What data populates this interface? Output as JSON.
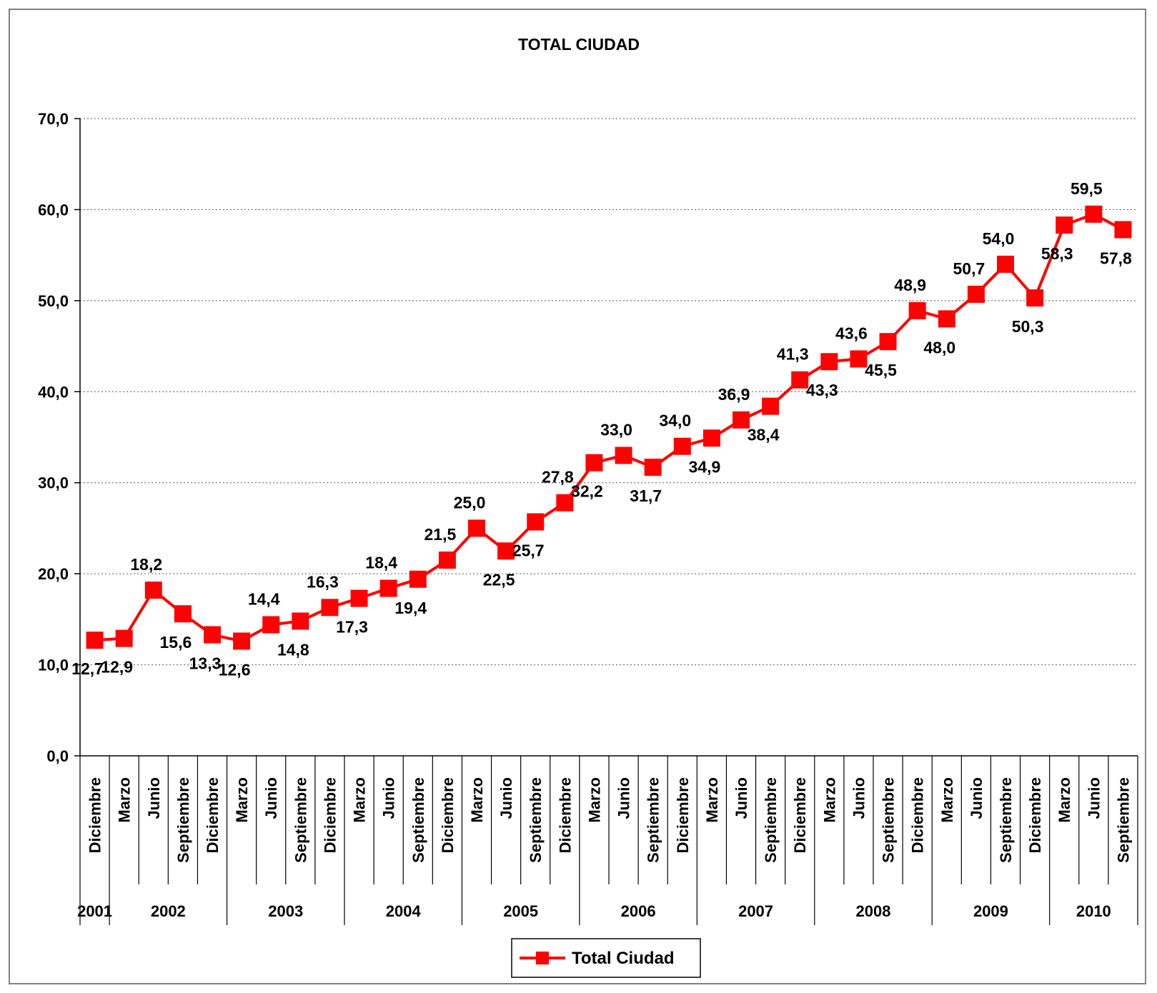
{
  "chart_data": {
    "type": "line",
    "title": "TOTAL CIUDAD",
    "xlabel": "",
    "ylabel": "",
    "ylim": [
      0,
      70
    ],
    "yticks": [
      "0,0",
      "10,0",
      "20,0",
      "30,0",
      "40,0",
      "50,0",
      "60,0",
      "70,0"
    ],
    "grid": "horizontal dotted",
    "legend_position": "bottom-center",
    "series_color": "#ff0000",
    "categories": [
      "Diciembre",
      "Marzo",
      "Junio",
      "Septiembre",
      "Diciembre",
      "Marzo",
      "Junio",
      "Septiembre",
      "Diciembre",
      "Marzo",
      "Junio",
      "Septiembre",
      "Diciembre",
      "Marzo",
      "Junio",
      "Septiembre",
      "Diciembre",
      "Marzo",
      "Junio",
      "Septiembre",
      "Diciembre",
      "Marzo",
      "Junio",
      "Septiembre",
      "Diciembre",
      "Marzo",
      "Junio",
      "Septiembre",
      "Diciembre",
      "Marzo",
      "Junio",
      "Septiembre",
      "Diciembre",
      "Marzo",
      "Junio",
      "Septiembre"
    ],
    "years": [
      {
        "label": "2001",
        "start": 0,
        "end": 0
      },
      {
        "label": "2002",
        "start": 1,
        "end": 4
      },
      {
        "label": "2003",
        "start": 5,
        "end": 8
      },
      {
        "label": "2004",
        "start": 9,
        "end": 12
      },
      {
        "label": "2005",
        "start": 13,
        "end": 16
      },
      {
        "label": "2006",
        "start": 17,
        "end": 20
      },
      {
        "label": "2007",
        "start": 21,
        "end": 24
      },
      {
        "label": "2008",
        "start": 25,
        "end": 28
      },
      {
        "label": "2009",
        "start": 29,
        "end": 32
      },
      {
        "label": "2010",
        "start": 33,
        "end": 35
      }
    ],
    "series": [
      {
        "name": "Total Ciudad",
        "values": [
          12.7,
          12.9,
          18.2,
          15.6,
          13.3,
          12.6,
          14.4,
          14.8,
          16.3,
          17.3,
          18.4,
          19.4,
          21.5,
          25.0,
          22.5,
          25.7,
          27.8,
          32.2,
          33.0,
          31.7,
          34.0,
          34.9,
          36.9,
          38.4,
          41.3,
          43.3,
          43.6,
          45.5,
          48.9,
          48.0,
          50.7,
          54.0,
          50.3,
          58.3,
          59.5,
          57.8
        ],
        "labels": [
          "12,7",
          "12,9",
          "18,2",
          "15,6",
          "13,3",
          "12,6",
          "14,4",
          "14,8",
          "16,3",
          "17,3",
          "18,4",
          "19,4",
          "21,5",
          "25,0",
          "22,5",
          "25,7",
          "27,8",
          "32,2",
          "33,0",
          "31,7",
          "34,0",
          "34,9",
          "36,9",
          "38,4",
          "41,3",
          "43,3",
          "43,6",
          "45,5",
          "48,9",
          "48,0",
          "50,7",
          "54,0",
          "50,3",
          "58,3",
          "59,5",
          "57,8"
        ]
      }
    ]
  }
}
